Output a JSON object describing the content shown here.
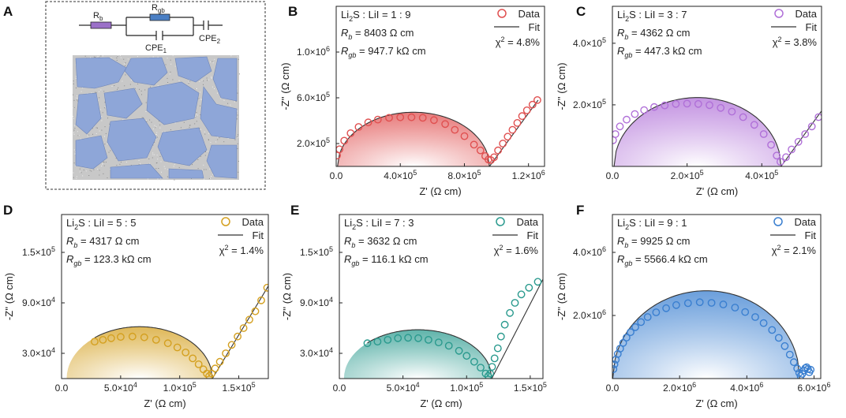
{
  "panel_a": {
    "letter": "A",
    "circuit": {
      "rb": "R",
      "rb_sub": "b",
      "rgb": "R",
      "rgb_sub": "gb",
      "cpe1": "CPE",
      "cpe1_sub": "1",
      "cpe2": "CPE",
      "cpe2_sub": "2"
    },
    "colors": {
      "grain": "#8ea6d8",
      "boundary": "#c8c8c8",
      "rb_box": "#9b70c8",
      "rgb_box": "#4a7fc4"
    }
  },
  "chart_data": [
    {
      "id": "B",
      "type": "scatter",
      "letter": "B",
      "color": "#e05050",
      "composition": {
        "base": "Li",
        "sub": "2",
        "rest": "S : LiI = 1 : 9"
      },
      "rb_text": {
        "label": "R",
        "sub": "b",
        "value": " = 8403 Ω cm"
      },
      "rgb_text": {
        "label": "R",
        "sub": "gb",
        "value": " = 947.7 kΩ cm"
      },
      "chi_text": {
        "label": "χ",
        "sup": "2",
        "value": " = 4.8%"
      },
      "legend": {
        "data": "Data",
        "fit": "Fit"
      },
      "xlabel": "Z' (Ω cm)",
      "ylabel": "-Z'' (Ω cm)",
      "xlim": [
        0,
        1300000
      ],
      "ylim": [
        0,
        1400000
      ],
      "xticks": [
        0,
        400000,
        800000,
        1200000
      ],
      "xticklabels": [
        {
          "m": "0.0",
          "e": ""
        },
        {
          "m": "4.0×10",
          "e": "5"
        },
        {
          "m": "8.0×10",
          "e": "5"
        },
        {
          "m": "1.2×10",
          "e": "6"
        }
      ],
      "yticks": [
        200000,
        600000,
        1000000
      ],
      "yticklabels": [
        {
          "m": "2.0×10",
          "e": "5"
        },
        {
          "m": "6.0×10",
          "e": "5"
        },
        {
          "m": "1.0×10",
          "e": "6"
        }
      ],
      "arc": {
        "r0": 8403,
        "d": 947700,
        "spikeEnd": [
          1260000,
          580000
        ]
      },
      "points": [
        [
          5000,
          95000
        ],
        [
          20000,
          150000
        ],
        [
          50000,
          225000
        ],
        [
          90000,
          290000
        ],
        [
          140000,
          345000
        ],
        [
          200000,
          385000
        ],
        [
          260000,
          410000
        ],
        [
          330000,
          425000
        ],
        [
          400000,
          430000
        ],
        [
          470000,
          430000
        ],
        [
          540000,
          425000
        ],
        [
          610000,
          405000
        ],
        [
          680000,
          370000
        ],
        [
          740000,
          320000
        ],
        [
          800000,
          265000
        ],
        [
          860000,
          190000
        ],
        [
          900000,
          140000
        ],
        [
          930000,
          90000
        ],
        [
          950000,
          60000
        ],
        [
          965000,
          55000
        ],
        [
          985000,
          80000
        ],
        [
          1010000,
          140000
        ],
        [
          1040000,
          200000
        ],
        [
          1070000,
          260000
        ],
        [
          1100000,
          320000
        ],
        [
          1130000,
          380000
        ],
        [
          1160000,
          440000
        ],
        [
          1190000,
          490000
        ],
        [
          1225000,
          540000
        ],
        [
          1255000,
          580000
        ]
      ]
    },
    {
      "id": "C",
      "type": "scatter",
      "letter": "C",
      "color": "#b070d8",
      "composition": {
        "base": "Li",
        "sub": "2",
        "rest": "S : LiI = 3 : 7"
      },
      "rb_text": {
        "label": "R",
        "sub": "b",
        "value": " = 4362 Ω cm"
      },
      "rgb_text": {
        "label": "R",
        "sub": "gb",
        "value": " = 447.3 kΩ cm"
      },
      "chi_text": {
        "label": "χ",
        "sup": "2",
        "value": " = 3.8%"
      },
      "legend": {
        "data": "Data",
        "fit": "Fit"
      },
      "xlabel": "Z' (Ω cm)",
      "ylabel": "-Z'' (Ω cm)",
      "xlim": [
        0,
        560000
      ],
      "ylim": [
        0,
        520000
      ],
      "xticks": [
        0,
        200000,
        400000
      ],
      "xticklabels": [
        {
          "m": "0.0",
          "e": ""
        },
        {
          "m": "2.0×10",
          "e": "5"
        },
        {
          "m": "4.0×10",
          "e": "5"
        }
      ],
      "yticks": [
        200000,
        400000
      ],
      "yticklabels": [
        {
          "m": "2.0×10",
          "e": "5"
        },
        {
          "m": "4.0×10",
          "e": "5"
        }
      ],
      "arc": {
        "r0": 4362,
        "d": 447300,
        "spikeEnd": [
          560000,
          180000
        ]
      },
      "points": [
        [
          2000,
          85000
        ],
        [
          8000,
          105000
        ],
        [
          20000,
          130000
        ],
        [
          38000,
          152000
        ],
        [
          60000,
          170000
        ],
        [
          85000,
          183000
        ],
        [
          112000,
          193000
        ],
        [
          140000,
          198000
        ],
        [
          170000,
          203000
        ],
        [
          200000,
          204000
        ],
        [
          230000,
          203000
        ],
        [
          260000,
          199000
        ],
        [
          290000,
          190000
        ],
        [
          320000,
          178000
        ],
        [
          350000,
          160000
        ],
        [
          380000,
          135000
        ],
        [
          405000,
          105000
        ],
        [
          425000,
          70000
        ],
        [
          440000,
          35000
        ],
        [
          450000,
          15000
        ],
        [
          465000,
          30000
        ],
        [
          480000,
          55000
        ],
        [
          498000,
          80000
        ],
        [
          516000,
          105000
        ],
        [
          534000,
          130000
        ],
        [
          552000,
          160000
        ]
      ]
    },
    {
      "id": "D",
      "type": "scatter",
      "letter": "D",
      "color": "#d4a020",
      "composition": {
        "base": "Li",
        "sub": "2",
        "rest": "S : LiI = 5 : 5"
      },
      "rb_text": {
        "label": "R",
        "sub": "b",
        "value": " = 4317 Ω cm"
      },
      "rgb_text": {
        "label": "R",
        "sub": "gb",
        "value": " = 123.3 kΩ cm"
      },
      "chi_text": {
        "label": "χ",
        "sup": "2",
        "value": " = 1.4%"
      },
      "legend": {
        "data": "Data",
        "fit": "Fit"
      },
      "xlabel": "Z' (Ω cm)",
      "ylabel": "-Z'' (Ω cm)",
      "xlim": [
        0,
        175000
      ],
      "ylim": [
        0,
        195000
      ],
      "xticks": [
        0,
        50000,
        100000,
        150000
      ],
      "xticklabels": [
        {
          "m": "0.0",
          "e": ""
        },
        {
          "m": "5.0×10",
          "e": "4"
        },
        {
          "m": "1.0×10",
          "e": "5"
        },
        {
          "m": "1.5×10",
          "e": "5"
        }
      ],
      "yticks": [
        30000,
        90000,
        150000
      ],
      "yticklabels": [
        {
          "m": "3.0×10",
          "e": "4"
        },
        {
          "m": "9.0×10",
          "e": "4"
        },
        {
          "m": "1.5×10",
          "e": "5"
        }
      ],
      "arc": {
        "r0": 4317,
        "d": 123300,
        "spikeEnd": [
          175000,
          110000
        ],
        "fitStart": 28000
      },
      "points": [
        [
          28000,
          44000
        ],
        [
          35000,
          46000
        ],
        [
          42000,
          48000
        ],
        [
          50000,
          49500
        ],
        [
          60000,
          50000
        ],
        [
          70000,
          49000
        ],
        [
          80000,
          46000
        ],
        [
          90000,
          42000
        ],
        [
          98000,
          37000
        ],
        [
          105000,
          31000
        ],
        [
          111000,
          24000
        ],
        [
          116000,
          17000
        ],
        [
          120000,
          11000
        ],
        [
          123000,
          6000
        ],
        [
          125000,
          3000
        ],
        [
          127000,
          6000
        ],
        [
          130000,
          12000
        ],
        [
          134000,
          20000
        ],
        [
          139000,
          30000
        ],
        [
          144000,
          40000
        ],
        [
          149000,
          50000
        ],
        [
          154000,
          60000
        ],
        [
          159000,
          70000
        ],
        [
          164000,
          80000
        ],
        [
          169000,
          93000
        ],
        [
          174000,
          108000
        ]
      ]
    },
    {
      "id": "E",
      "type": "scatter",
      "letter": "E",
      "color": "#2a9a8e",
      "composition": {
        "base": "Li",
        "sub": "2",
        "rest": "S : LiI = 7 : 3"
      },
      "rb_text": {
        "label": "R",
        "sub": "b",
        "value": " = 3632 Ω cm"
      },
      "rgb_text": {
        "label": "R",
        "sub": "gb",
        "value": " = 116.1 kΩ cm"
      },
      "chi_text": {
        "label": "χ",
        "sup": "2",
        "value": " = 1.6%"
      },
      "legend": {
        "data": "Data",
        "fit": "Fit"
      },
      "xlabel": "Z' (Ω cm)",
      "ylabel": "-Z'' (Ω cm)",
      "xlim": [
        0,
        160000
      ],
      "ylim": [
        0,
        195000
      ],
      "xticks": [
        0,
        50000,
        100000,
        150000
      ],
      "xticklabels": [
        {
          "m": "0.0",
          "e": ""
        },
        {
          "m": "5.0×10",
          "e": "4"
        },
        {
          "m": "1.0×10",
          "e": "5"
        },
        {
          "m": "1.5×10",
          "e": "5"
        }
      ],
      "yticks": [
        30000,
        90000,
        150000
      ],
      "yticklabels": [
        {
          "m": "3.0×10",
          "e": "4"
        },
        {
          "m": "9.0×10",
          "e": "4"
        },
        {
          "m": "1.5×10",
          "e": "5"
        }
      ],
      "arc": {
        "r0": 3632,
        "d": 116100,
        "spikeEnd": [
          160000,
          118000
        ],
        "fitStart": 22000
      },
      "points": [
        [
          22000,
          42000
        ],
        [
          30000,
          44000
        ],
        [
          38000,
          46000
        ],
        [
          46000,
          48000
        ],
        [
          54000,
          48500
        ],
        [
          62000,
          48000
        ],
        [
          70000,
          46000
        ],
        [
          78000,
          43000
        ],
        [
          86000,
          39000
        ],
        [
          94000,
          33000
        ],
        [
          100000,
          27000
        ],
        [
          106000,
          20000
        ],
        [
          111000,
          13000
        ],
        [
          115000,
          6000
        ],
        [
          117000,
          3000
        ],
        [
          118500,
          6000
        ],
        [
          120000,
          14000
        ],
        [
          122000,
          24000
        ],
        [
          124500,
          36000
        ],
        [
          127000,
          50000
        ],
        [
          130000,
          64000
        ],
        [
          134000,
          78000
        ],
        [
          138000,
          90000
        ],
        [
          143000,
          100000
        ],
        [
          149000,
          108000
        ],
        [
          156000,
          115000
        ]
      ]
    },
    {
      "id": "F",
      "type": "scatter",
      "letter": "F",
      "color": "#3a7fd0",
      "composition": {
        "base": "Li",
        "sub": "2",
        "rest": "S : LiI = 9 : 1"
      },
      "rb_text": {
        "label": "R",
        "sub": "b",
        "value": " = 9925 Ω cm"
      },
      "rgb_text": {
        "label": "R",
        "sub": "gb",
        "value": " = 5566.4 kΩ cm"
      },
      "chi_text": {
        "label": "χ",
        "sup": "2",
        "value": " = 2.1%"
      },
      "legend": {
        "data": "Data",
        "fit": "Fit"
      },
      "xlabel": "Z' (Ω cm)",
      "ylabel": "-Z'' (Ω cm)",
      "xlim": [
        0,
        6200000
      ],
      "ylim": [
        0,
        5200000
      ],
      "xticks": [
        0,
        2000000,
        4000000,
        6000000
      ],
      "xticklabels": [
        {
          "m": "0.0",
          "e": ""
        },
        {
          "m": "2.0×10",
          "e": "6"
        },
        {
          "m": "4.0×10",
          "e": "6"
        },
        {
          "m": "6.0×10",
          "e": "6"
        }
      ],
      "yticks": [
        2000000,
        4000000
      ],
      "yticklabels": [
        {
          "m": "2.0×10",
          "e": "6"
        },
        {
          "m": "4.0×10",
          "e": "6"
        }
      ],
      "arc": {
        "r0": 9925,
        "d": 5566400
      },
      "points": [
        [
          30000,
          300000
        ],
        [
          60000,
          450000
        ],
        [
          100000,
          600000
        ],
        [
          160000,
          780000
        ],
        [
          230000,
          950000
        ],
        [
          320000,
          1130000
        ],
        [
          420000,
          1300000
        ],
        [
          540000,
          1470000
        ],
        [
          680000,
          1630000
        ],
        [
          850000,
          1790000
        ],
        [
          1050000,
          1950000
        ],
        [
          1300000,
          2100000
        ],
        [
          1600000,
          2230000
        ],
        [
          1900000,
          2330000
        ],
        [
          2250000,
          2390000
        ],
        [
          2600000,
          2420000
        ],
        [
          2950000,
          2400000
        ],
        [
          3300000,
          2350000
        ],
        [
          3650000,
          2250000
        ],
        [
          3950000,
          2110000
        ],
        [
          4250000,
          1950000
        ],
        [
          4500000,
          1760000
        ],
        [
          4750000,
          1540000
        ],
        [
          4950000,
          1290000
        ],
        [
          5130000,
          1030000
        ],
        [
          5280000,
          760000
        ],
        [
          5400000,
          520000
        ],
        [
          5500000,
          320000
        ],
        [
          5560000,
          180000
        ],
        [
          5600000,
          80000
        ],
        [
          5650000,
          150000
        ],
        [
          5700000,
          260000
        ],
        [
          5740000,
          330000
        ],
        [
          5780000,
          360000
        ],
        [
          5820000,
          300000
        ],
        [
          5860000,
          200000
        ],
        [
          5900000,
          280000
        ]
      ]
    }
  ]
}
